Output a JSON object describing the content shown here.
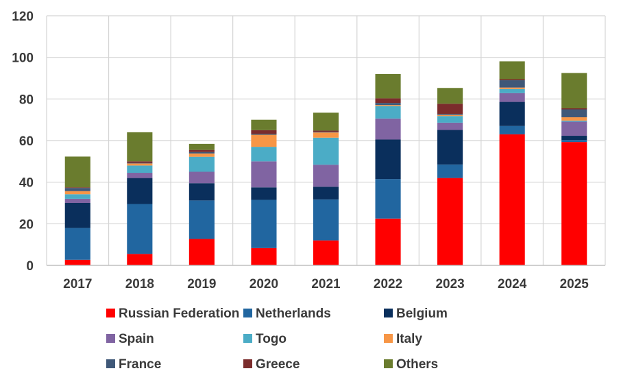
{
  "chart_data": {
    "type": "bar",
    "stacked": true,
    "title": "",
    "xlabel": "",
    "ylabel": "",
    "ylim": [
      0,
      120
    ],
    "yticks": [
      0,
      20,
      40,
      60,
      80,
      100,
      120
    ],
    "grid": true,
    "legend_position": "bottom",
    "categories": [
      "2017",
      "2018",
      "2019",
      "2020",
      "2021",
      "2022",
      "2023",
      "2024",
      "2025"
    ],
    "series": [
      {
        "name": "Russian Federation",
        "color": "#ff0000",
        "values": [
          2.7,
          5.5,
          12.7,
          8.3,
          12.0,
          22.5,
          42.0,
          63.0,
          59.3
        ]
      },
      {
        "name": "Netherlands",
        "color": "#2166a0",
        "values": [
          15.3,
          24.0,
          18.5,
          23.2,
          19.7,
          19.0,
          6.5,
          4.0,
          1.0
        ]
      },
      {
        "name": "Belgium",
        "color": "#0a2f5c",
        "values": [
          12.0,
          12.5,
          8.3,
          6.0,
          6.1,
          19.0,
          16.6,
          11.6,
          2.0
        ]
      },
      {
        "name": "Spain",
        "color": "#8064a2",
        "values": [
          2.0,
          2.5,
          5.5,
          12.5,
          10.6,
          10.1,
          3.5,
          4.2,
          6.8
        ]
      },
      {
        "name": "Togo",
        "color": "#4bacc6",
        "values": [
          2.2,
          3.5,
          7.2,
          7.0,
          13.0,
          6.0,
          3.2,
          2.0,
          0.5
        ]
      },
      {
        "name": "Italy",
        "color": "#f79646",
        "values": [
          1.5,
          1.0,
          1.6,
          5.8,
          2.5,
          0.5,
          0.5,
          0.7,
          1.6
        ]
      },
      {
        "name": "France",
        "color": "#3f5878",
        "values": [
          1.5,
          0.3,
          0.7,
          0.5,
          0.3,
          1.0,
          0.5,
          3.5,
          3.8
        ]
      },
      {
        "name": "Greece",
        "color": "#7b2c2c",
        "values": [
          0.3,
          0.7,
          1.0,
          1.7,
          0.6,
          2.2,
          4.9,
          0.5,
          0.5
        ]
      },
      {
        "name": "Others",
        "color": "#6a7c2e",
        "values": [
          14.8,
          14.0,
          2.9,
          5.0,
          8.6,
          11.7,
          7.6,
          8.6,
          17.0
        ]
      }
    ]
  }
}
